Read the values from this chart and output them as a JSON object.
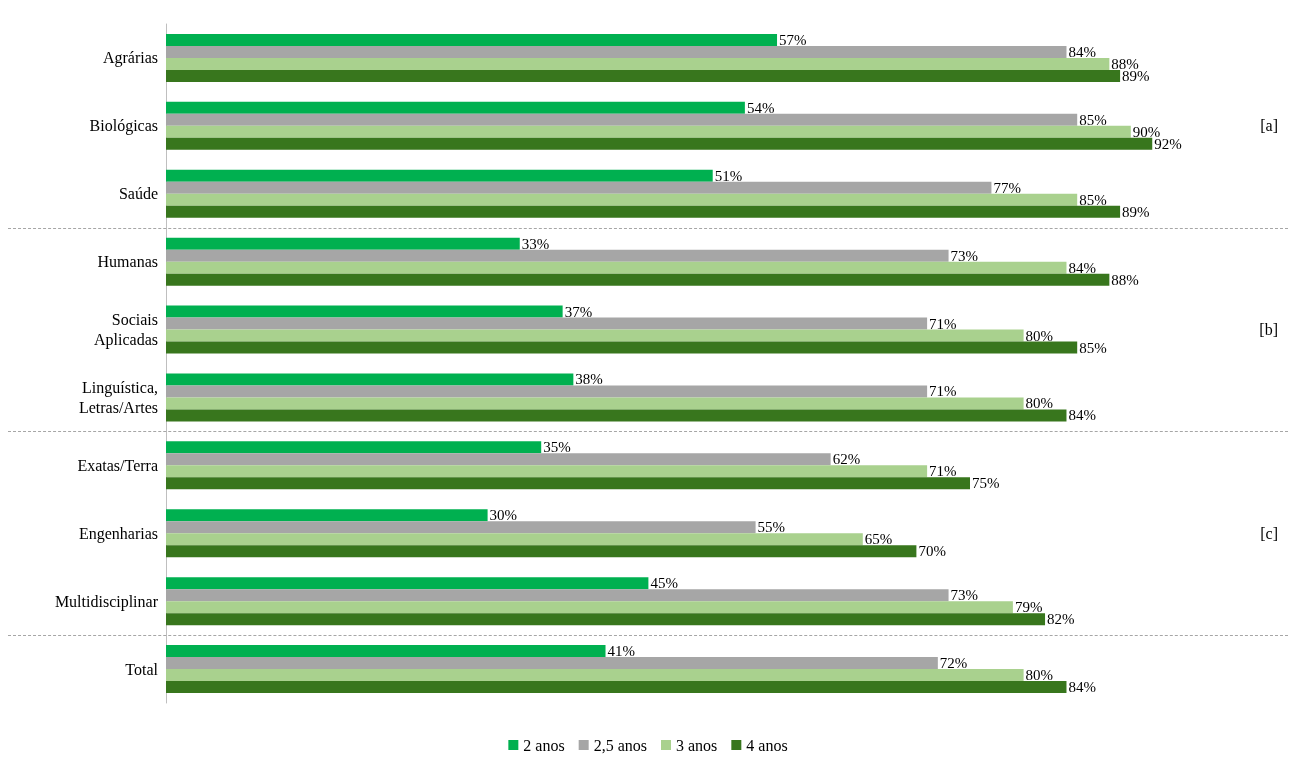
{
  "chart_data": {
    "type": "bar",
    "orientation": "horizontal",
    "categories": [
      "Agrárias",
      "Biológicas",
      "Saúde",
      "Humanas",
      "Sociais\nAplicadas",
      "Linguística,\nLetras/Artes",
      "Exatas/Terra",
      "Engenharias",
      "Multidisciplinar",
      "Total"
    ],
    "series": [
      {
        "name": "2 anos",
        "color": "#00b050",
        "values": [
          57,
          54,
          51,
          33,
          37,
          38,
          35,
          30,
          45,
          41
        ],
        "value_labels": [
          "57%",
          "54%",
          "51%",
          "33%",
          "37%",
          "38%",
          "35%",
          "30%",
          "45%",
          "41%"
        ]
      },
      {
        "name": "2,5 anos",
        "color": "#a6a6a6",
        "values": [
          84,
          85,
          77,
          73,
          71,
          71,
          62,
          55,
          73,
          72
        ],
        "value_labels": [
          "84%",
          "85%",
          "77%",
          "73%",
          "71%",
          "71%",
          "62%",
          "55%",
          "73%",
          "72%"
        ]
      },
      {
        "name": "3 anos",
        "color": "#a9d18e",
        "values": [
          88,
          90,
          85,
          84,
          80,
          80,
          71,
          65,
          79,
          80
        ],
        "value_labels": [
          "88%",
          "90%",
          "85%",
          "84%",
          "80%",
          "80%",
          "71%",
          "65%",
          "79%",
          "80%"
        ]
      },
      {
        "name": "4 anos",
        "color": "#38761d",
        "values": [
          89,
          92,
          89,
          88,
          85,
          84,
          75,
          70,
          82,
          84
        ],
        "value_labels": [
          "89%",
          "92%",
          "89%",
          "88%",
          "85%",
          "84%",
          "75%",
          "70%",
          "82%",
          "84%"
        ]
      }
    ],
    "annotations": [
      "[a]",
      "[b]",
      "[c]"
    ],
    "legend": "bottom"
  }
}
